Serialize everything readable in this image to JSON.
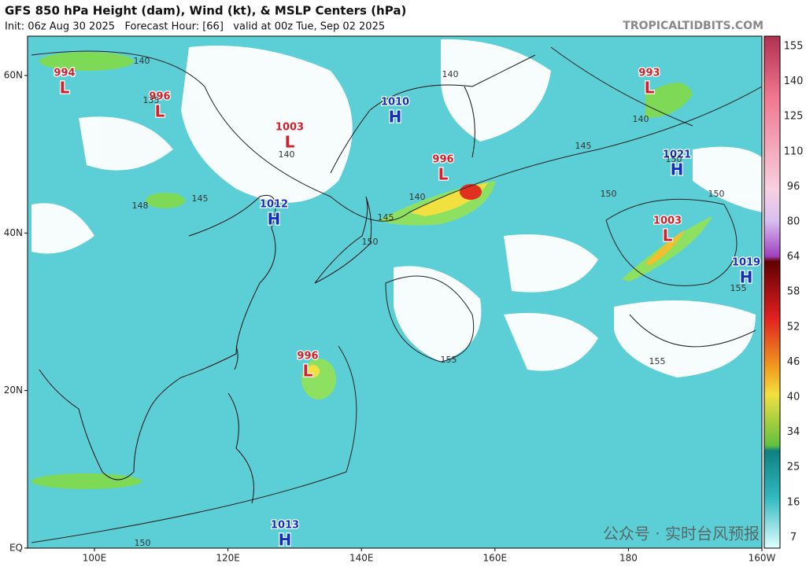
{
  "header": {
    "title": "GFS 850 hPa Height (dam), Wind (kt), & MSLP Centers (hPa)",
    "subtitle": "Init: 06z Aug 30 2025   Forecast Hour: [66]   valid at 00z Tue, Sep 02 2025",
    "watermark": "TROPICALTIDBITS.COM"
  },
  "map": {
    "lat_labels": [
      "60N",
      "40N",
      "20N",
      "EQ"
    ],
    "lon_labels": [
      "100E",
      "120E",
      "140E",
      "160E",
      "180",
      "160W"
    ],
    "centers": [
      {
        "value": 994,
        "letter": "L"
      },
      {
        "value": 996,
        "letter": "L"
      },
      {
        "value": 1003,
        "letter": "L"
      },
      {
        "value": 1010,
        "letter": "H"
      },
      {
        "value": 1012,
        "letter": "H"
      },
      {
        "value": 996,
        "letter": "L"
      },
      {
        "value": 993,
        "letter": "L"
      },
      {
        "value": 1021,
        "letter": "H"
      },
      {
        "value": 1003,
        "letter": "L"
      },
      {
        "value": 1019,
        "letter": "H"
      },
      {
        "value": 996,
        "letter": "L"
      },
      {
        "value": 1013,
        "letter": "H"
      }
    ],
    "contour_labels": [
      140,
      135,
      140,
      140,
      140,
      145,
      145,
      148,
      145,
      140,
      150,
      150,
      150,
      150,
      155,
      155,
      155,
      150
    ]
  },
  "colorbar": {
    "labels": [
      155,
      140,
      125,
      110,
      96,
      80,
      64,
      58,
      52,
      46,
      40,
      34,
      25,
      16,
      7
    ]
  },
  "overlay": {
    "wechat": "公众号 · 实时台风预报"
  }
}
